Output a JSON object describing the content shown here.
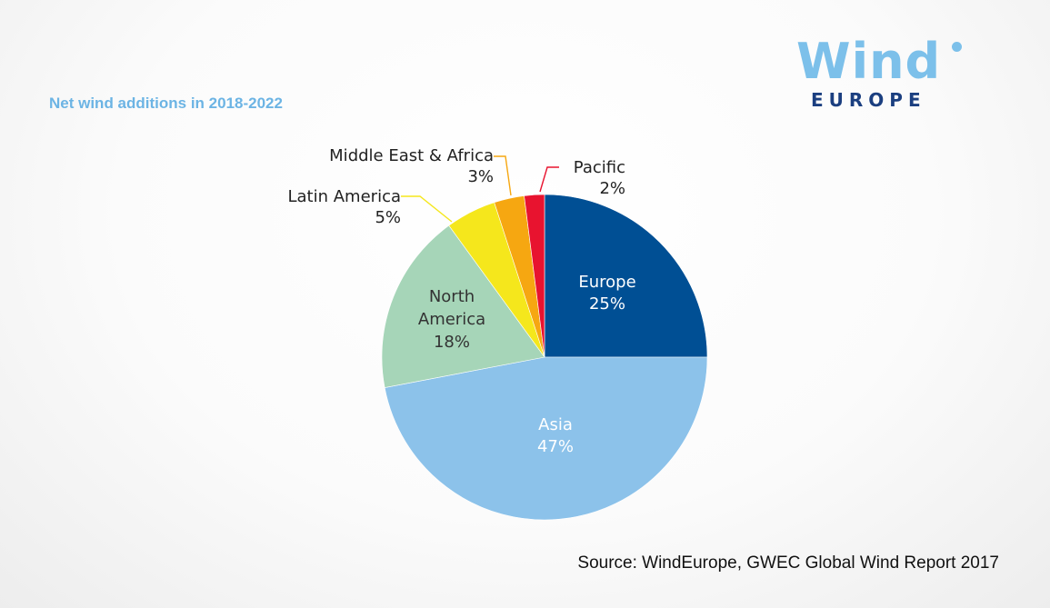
{
  "title": "Net wind additions in 2018-2022",
  "source": "Source: WindEurope, GWEC Global Wind Report 2017",
  "logo": {
    "wind": "Wind",
    "europe": "EUROPE",
    "primary_color": "#7cc0ea",
    "secondary_color": "#1b3f80"
  },
  "chart_data": {
    "type": "pie",
    "title": "Net wind additions in 2018-2022",
    "start": "12 o'clock",
    "direction": "clockwise",
    "slices": [
      {
        "label": "Europe",
        "label_lines": [
          "Europe"
        ],
        "value": 25,
        "percent_label": "25%",
        "color": "#004f94"
      },
      {
        "label": "Asia",
        "label_lines": [
          "Asia"
        ],
        "value": 47,
        "percent_label": "47%",
        "color": "#8cc2ea"
      },
      {
        "label": "North America",
        "label_lines": [
          "North",
          "America"
        ],
        "value": 18,
        "percent_label": "18%",
        "color": "#a6d5b8"
      },
      {
        "label": "Latin America",
        "label_lines": [
          "Latin America"
        ],
        "value": 5,
        "percent_label": "5%",
        "color": "#f5e71c"
      },
      {
        "label": "Middle East & Africa",
        "label_lines": [
          "Middle East & Africa"
        ],
        "value": 3,
        "percent_label": "3%",
        "color": "#f6a711"
      },
      {
        "label": "Pacific",
        "label_lines": [
          "Pacific"
        ],
        "value": 2,
        "percent_label": "2%",
        "color": "#e8132f"
      }
    ]
  }
}
